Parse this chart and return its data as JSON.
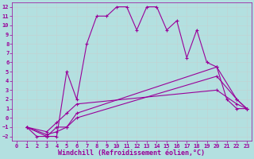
{
  "background_color": "#b3e0e0",
  "grid_color": "#c0d4d4",
  "line_color": "#990099",
  "marker": "+",
  "markersize": 3,
  "linewidth": 0.8,
  "xlabel": "Windchill (Refroidissement éolien,°C)",
  "xlabel_fontsize": 6,
  "tick_fontsize": 5,
  "xlim": [
    -0.5,
    23.5
  ],
  "ylim": [
    -2.5,
    12.5
  ],
  "xticks": [
    0,
    1,
    2,
    3,
    4,
    5,
    6,
    7,
    8,
    9,
    10,
    11,
    12,
    13,
    14,
    15,
    16,
    17,
    18,
    19,
    20,
    21,
    22,
    23
  ],
  "yticks": [
    -2,
    -1,
    0,
    1,
    2,
    3,
    4,
    5,
    6,
    7,
    8,
    9,
    10,
    11,
    12
  ],
  "series": [
    {
      "x": [
        1,
        2,
        3,
        4,
        5,
        6,
        7,
        8,
        9,
        10,
        11,
        12,
        13,
        14,
        15,
        16,
        17,
        18,
        19,
        20,
        21,
        22,
        23
      ],
      "y": [
        -1,
        -2,
        -2,
        -2,
        5,
        2,
        8,
        11,
        11,
        12,
        12,
        9.5,
        12,
        12,
        9.5,
        10.5,
        6.5,
        9.5,
        6,
        5.5,
        2,
        1,
        1
      ]
    },
    {
      "x": [
        1,
        3,
        4,
        5,
        6,
        20,
        22,
        23
      ],
      "y": [
        -1,
        -2,
        -1,
        -1,
        0.5,
        5.5,
        2,
        1
      ]
    },
    {
      "x": [
        1,
        3,
        4,
        5,
        6,
        20,
        22,
        23
      ],
      "y": [
        -1,
        -1.8,
        -1.5,
        -1,
        0,
        4.5,
        2,
        1
      ]
    },
    {
      "x": [
        1,
        3,
        4,
        5,
        6,
        20,
        22,
        23
      ],
      "y": [
        -1,
        -1.5,
        -0.5,
        0.5,
        1.5,
        3,
        1.5,
        1
      ]
    }
  ]
}
